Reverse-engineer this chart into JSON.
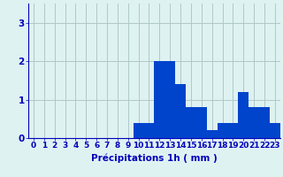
{
  "hours": [
    0,
    1,
    2,
    3,
    4,
    5,
    6,
    7,
    8,
    9,
    10,
    11,
    12,
    13,
    14,
    15,
    16,
    17,
    18,
    19,
    20,
    21,
    22,
    23
  ],
  "values": [
    0,
    0,
    0,
    0,
    0,
    0,
    0,
    0,
    0,
    0,
    0.4,
    0.4,
    2.0,
    2.0,
    1.4,
    0.8,
    0.8,
    0.2,
    0.4,
    0.4,
    1.2,
    0.8,
    0.8,
    0.4
  ],
  "bar_color": "#0044cc",
  "background_color": "#dff2f2",
  "grid_color": "#b0c8c8",
  "tick_color": "#0000bb",
  "label_color": "#0000bb",
  "xlabel": "Précipitations 1h ( mm )",
  "ylim": [
    0,
    3.5
  ],
  "yticks": [
    0,
    1,
    2,
    3
  ],
  "xlabel_fontsize": 7.5,
  "tick_fontsize": 6.5
}
